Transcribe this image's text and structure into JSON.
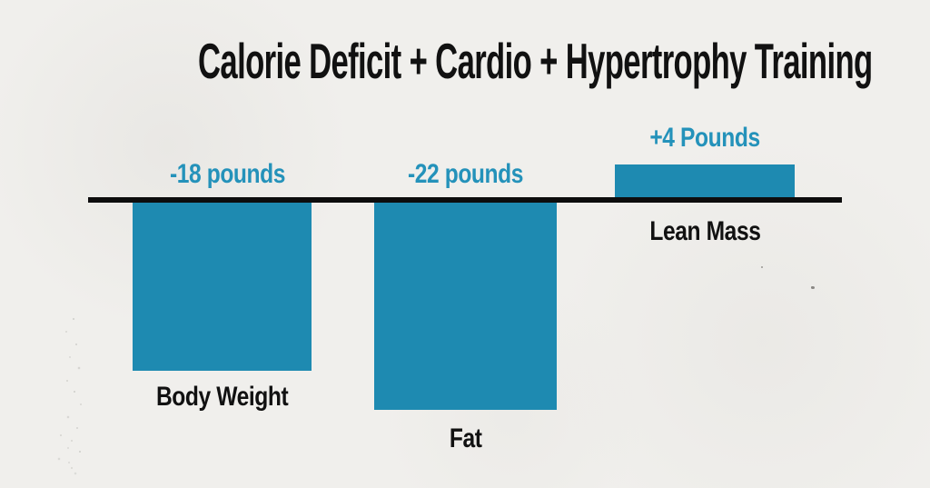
{
  "chart_data": {
    "type": "bar",
    "title": "Calorie Deficit + Cardio + Hypertrophy Training",
    "categories": [
      "Body Weight",
      "Fat",
      "Lean Mass"
    ],
    "values": [
      -18,
      -22,
      4
    ],
    "value_labels": [
      "-18 pounds",
      "-22 pounds",
      "+4 Pounds"
    ],
    "unit": "pounds",
    "baseline_value": 0,
    "ylim": [
      -22,
      4
    ],
    "grid": false,
    "legend": "none",
    "bar_color": "#1e8ab1",
    "value_label_color": "#2492ba",
    "category_label_color": "#111111",
    "axis_color": "#0d0d0d",
    "background_color": "#f0efec",
    "title_color": "#111111"
  }
}
